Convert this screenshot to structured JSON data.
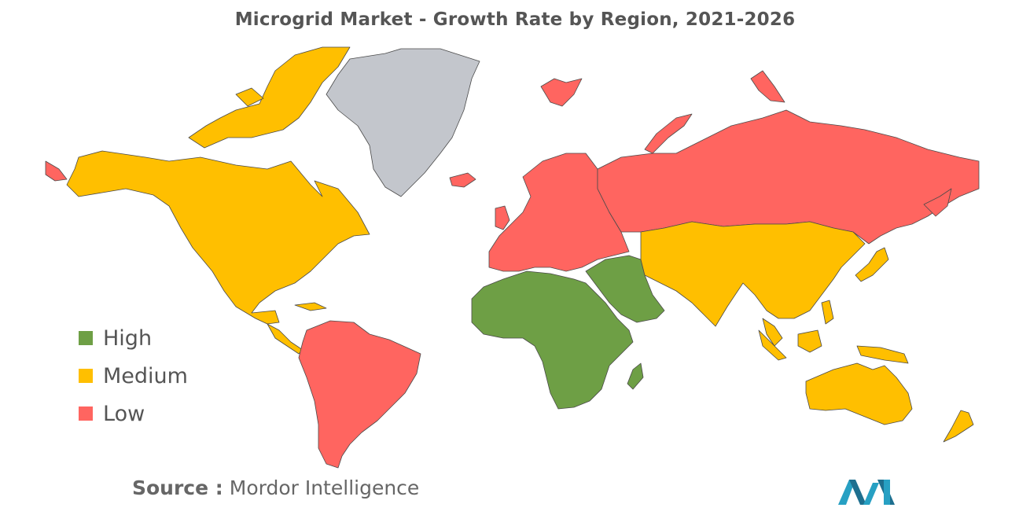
{
  "title": "Microgrid Market - Growth Rate by Region, 2021-2026",
  "legend": [
    {
      "label": "High",
      "color": "#6e9f45"
    },
    {
      "label": "Medium",
      "color": "#ffbf00"
    },
    {
      "label": "Low",
      "color": "#ff6560"
    }
  ],
  "colors": {
    "high": "#6e9f45",
    "medium": "#ffbf00",
    "low": "#ff6560",
    "no_data": "#c3c6cc",
    "border": "#4a4a4a"
  },
  "regions": {
    "north_america": "Medium",
    "south_america": "Low",
    "europe": "Low",
    "russia": "Low",
    "middle_east_africa": "High",
    "asia_pacific": "Medium",
    "greenland": "No data"
  },
  "source": {
    "key": "Source :",
    "value": "Mordor Intelligence"
  },
  "logo_icon": "mordor-intelligence-logo"
}
